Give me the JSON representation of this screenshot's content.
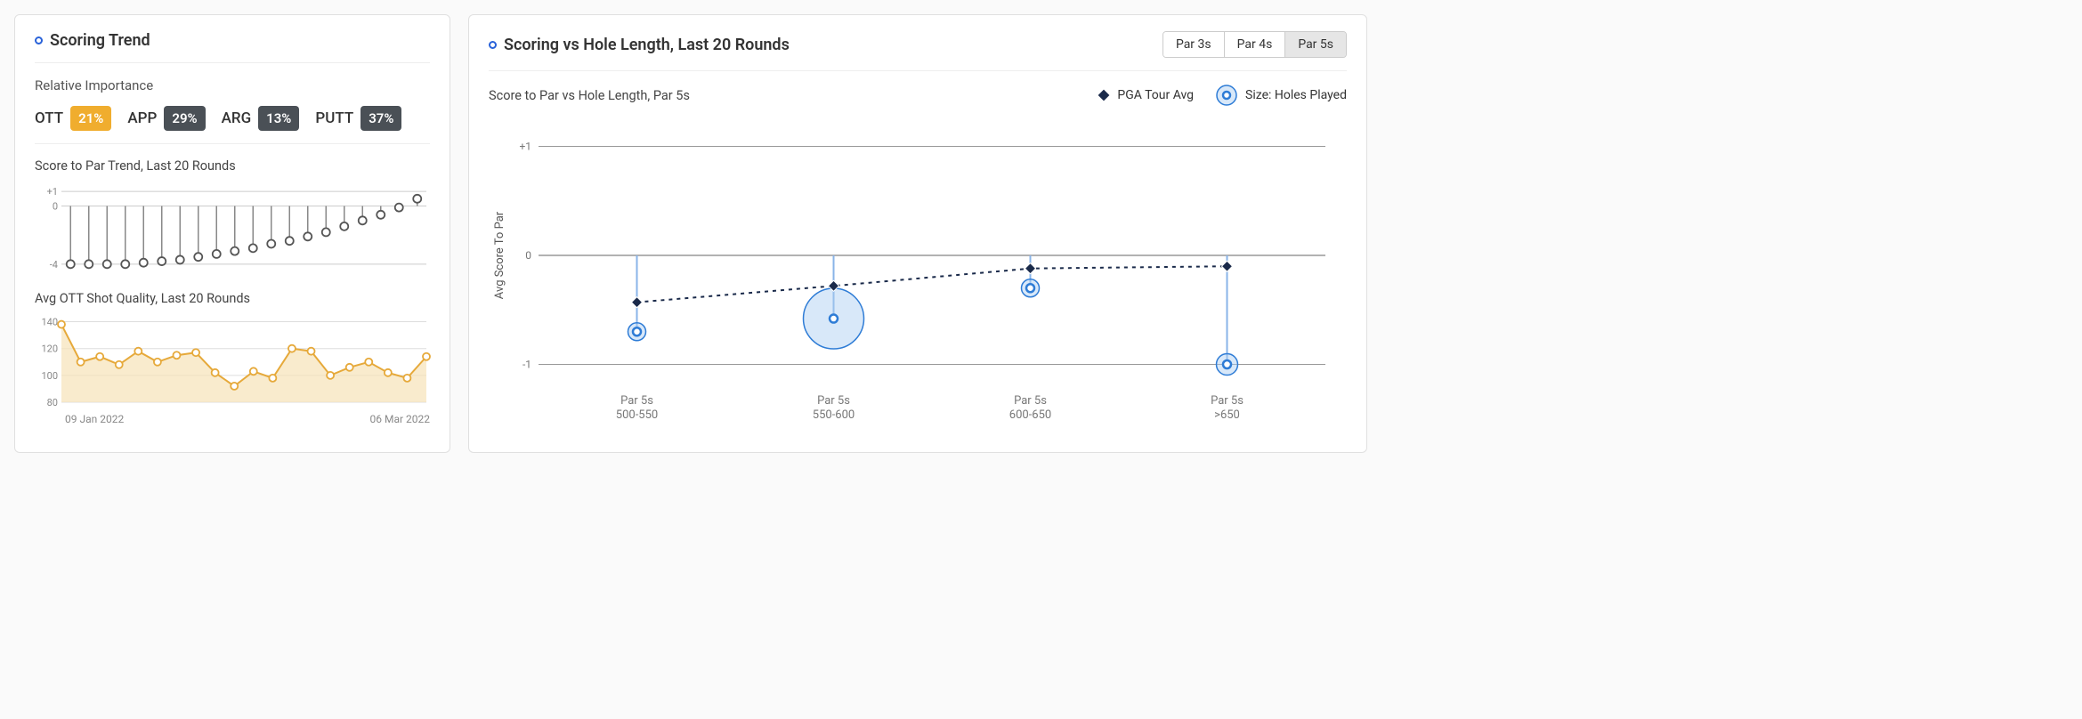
{
  "left": {
    "title": "Scoring Trend",
    "relative_importance_label": "Relative Importance",
    "importance": [
      {
        "label": "OTT",
        "value": "21%",
        "badge_bg": "#f0ad2e"
      },
      {
        "label": "APP",
        "value": "29%",
        "badge_bg": "#4a5056"
      },
      {
        "label": "ARG",
        "value": "13%",
        "badge_bg": "#4a5056"
      },
      {
        "label": "PUTT",
        "value": "37%",
        "badge_bg": "#4a5056"
      }
    ],
    "score_trend": {
      "title": "Score to Par Trend, Last 20 Rounds",
      "y_ticks": [
        1,
        0,
        -4
      ],
      "y_tick_labels": [
        "+1",
        "0",
        "-4"
      ],
      "ylim": [
        -4.5,
        1.5
      ],
      "values": [
        -4.0,
        -4.0,
        -4.0,
        -4.0,
        -3.9,
        -3.8,
        -3.7,
        -3.5,
        -3.3,
        -3.1,
        -2.9,
        -2.6,
        -2.4,
        -2.1,
        -1.8,
        -1.4,
        -1.0,
        -0.6,
        -0.1,
        0.5
      ],
      "point_stroke": "#555555",
      "point_fill": "#ffffff",
      "stem_color": "#888888",
      "grid_color": "#cccccc"
    },
    "ott_quality": {
      "title": "Avg OTT Shot Quality, Last 20 Rounds",
      "y_ticks": [
        140,
        120,
        100,
        80
      ],
      "ylim": [
        80,
        145
      ],
      "values": [
        138,
        110,
        114,
        108,
        118,
        110,
        115,
        117,
        102,
        92,
        103,
        98,
        120,
        118,
        100,
        106,
        110,
        102,
        98,
        114
      ],
      "stroke": "#e6a93a",
      "fill": "#f7e3b8",
      "point_fill": "#ffffff",
      "x_start_label": "09 Jan 2022",
      "x_end_label": "06 Mar 2022"
    }
  },
  "right": {
    "title": "Scoring vs Hole Length, Last 20 Rounds",
    "tabs": [
      {
        "label": "Par 3s",
        "active": false
      },
      {
        "label": "Par 4s",
        "active": false
      },
      {
        "label": "Par 5s",
        "active": true
      }
    ],
    "subtitle": "Score to Par vs Hole Length, Par 5s",
    "legend": {
      "pga": "PGA Tour Avg",
      "size": "Size: Holes Played"
    },
    "chart": {
      "y_label": "Avg Score To Par",
      "y_ticks": [
        1,
        0,
        -1
      ],
      "y_tick_labels": [
        "+1",
        "0",
        "-1"
      ],
      "ylim": [
        -1.2,
        1.2
      ],
      "categories": [
        "Par 5s",
        "Par 5s",
        "Par 5s",
        "Par 5s"
      ],
      "sub_categories": [
        "500-550",
        "550-600",
        "600-650",
        ">650"
      ],
      "pga_values": [
        -0.43,
        -0.28,
        -0.12,
        -0.1
      ],
      "player_values": [
        -0.7,
        -0.58,
        -0.3,
        -1.0
      ],
      "bubble_sizes": [
        10,
        34,
        10,
        12
      ],
      "pga_stroke": "#1a2a4a",
      "pga_fill": "#1a2a4a",
      "bubble_stroke": "#2e7cd6",
      "bubble_fill": "#a9cdf2",
      "bubble_fill_opacity": 0.45,
      "stem_color": "#8ab4e8",
      "grid_color": "#999999",
      "axis_color": "#666666"
    }
  }
}
